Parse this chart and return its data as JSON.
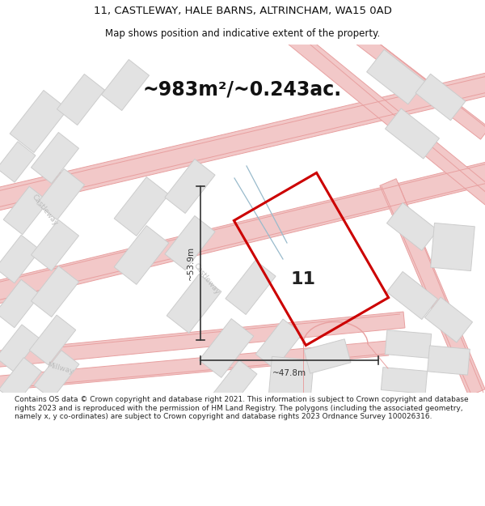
{
  "title_line1": "11, CASTLEWAY, HALE BARNS, ALTRINCHAM, WA15 0AD",
  "title_line2": "Map shows position and indicative extent of the property.",
  "area_label": "~983m²/~0.243ac.",
  "number_label": "11",
  "dim_vertical": "~53.9m",
  "dim_horizontal": "~47.8m",
  "footer": "Contains OS data © Crown copyright and database right 2021. This information is subject to Crown copyright and database rights 2023 and is reproduced with the permission of HM Land Registry. The polygons (including the associated geometry, namely x, y co-ordinates) are subject to Crown copyright and database rights 2023 Ordnance Survey 100026316.",
  "map_bg": "#f7f7f7",
  "building_fill": "#e2e2e2",
  "building_edge": "#cccccc",
  "road_fill": "#f2c8c8",
  "road_edge": "#e8a0a0",
  "property_color": "#cc0000",
  "dim_color": "#333333",
  "title_color": "#111111",
  "street_color": "#bbbbbb",
  "blue_line_color": "#99bbcc"
}
